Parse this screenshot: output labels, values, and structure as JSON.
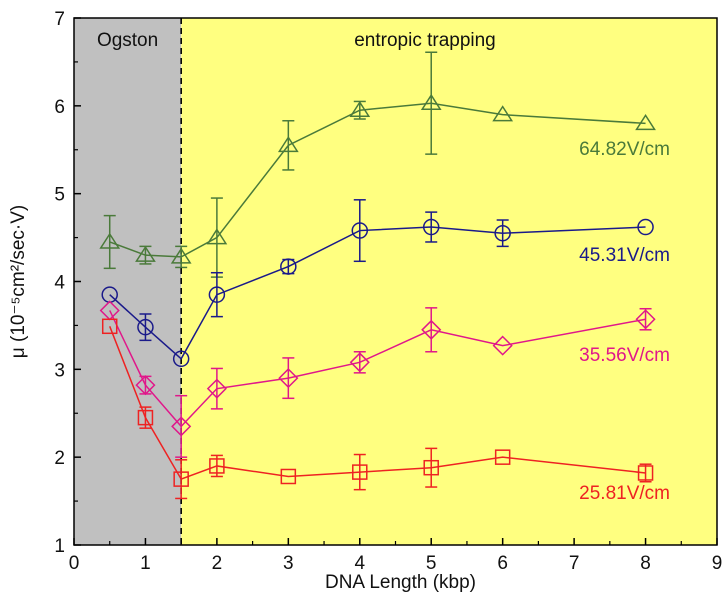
{
  "chart_data": {
    "type": "line",
    "xlabel": "DNA Length (kbp)",
    "ylabel": "μ (10⁻⁵cm²/sec·V)",
    "xlim": [
      0,
      9
    ],
    "ylim": [
      1,
      7
    ],
    "xticks": [
      0,
      1,
      2,
      3,
      4,
      5,
      6,
      7,
      8,
      9
    ],
    "yticks": [
      1,
      2,
      3,
      4,
      5,
      6,
      7
    ],
    "grid": false,
    "legend": "inline labels at right",
    "regions": [
      {
        "label": "Ogston",
        "x_start": 0,
        "x_end": 1.5,
        "color": "#c0c0c0"
      },
      {
        "label": "entropic trapping",
        "x_start": 1.5,
        "x_end": 9,
        "color": "#ffff80"
      }
    ],
    "boundary_x": 1.5,
    "series": [
      {
        "name": "64.82V/cm",
        "color": "#4a7a3a",
        "marker": "triangle",
        "x": [
          0.5,
          1,
          1.5,
          2,
          3,
          4,
          5,
          6,
          8
        ],
        "y": [
          4.45,
          4.3,
          4.28,
          4.5,
          5.55,
          5.95,
          6.03,
          5.9,
          5.8
        ],
        "err": [
          0.3,
          0.1,
          0.12,
          0.45,
          0.28,
          0.1,
          0.58,
          0,
          0
        ]
      },
      {
        "name": "45.31V/cm",
        "color": "#1a1a8a",
        "marker": "circle",
        "x": [
          0.5,
          1,
          1.5,
          2,
          3,
          4,
          5,
          6,
          8
        ],
        "y": [
          3.85,
          3.48,
          3.12,
          3.85,
          4.17,
          4.58,
          4.62,
          4.55,
          4.62
        ],
        "err": [
          0,
          0.15,
          0,
          0.25,
          0.08,
          0.35,
          0.17,
          0.15,
          0
        ]
      },
      {
        "name": "35.56V/cm",
        "color": "#e0178a",
        "marker": "diamond",
        "x": [
          0.5,
          1,
          1.5,
          2,
          3,
          4,
          5,
          6,
          8
        ],
        "y": [
          3.67,
          2.82,
          2.35,
          2.78,
          2.9,
          3.08,
          3.45,
          3.27,
          3.57
        ],
        "err": [
          0,
          0.1,
          0.35,
          0.23,
          0.23,
          0.12,
          0.25,
          0,
          0.12
        ]
      },
      {
        "name": "25.81V/cm",
        "color": "#ee2222",
        "marker": "square",
        "x": [
          0.5,
          1,
          1.5,
          2,
          3,
          4,
          5,
          6,
          8
        ],
        "y": [
          3.49,
          2.45,
          1.75,
          1.9,
          1.78,
          1.83,
          1.88,
          2.0,
          1.82
        ],
        "err": [
          0,
          0.12,
          0.22,
          0.12,
          0,
          0.2,
          0.22,
          0,
          0.1
        ]
      }
    ]
  }
}
